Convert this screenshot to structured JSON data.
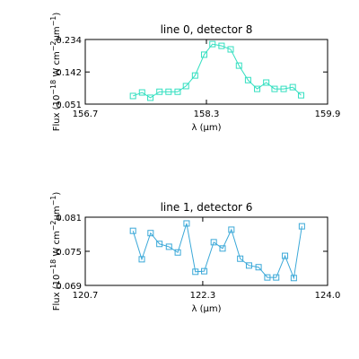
{
  "chart_data": [
    {
      "type": "line",
      "title": "line 0, detector 8",
      "xlabel": "λ (μm)",
      "ylabel": [
        "Flux (10",
        "−18",
        " W cm",
        "−2",
        "μm",
        "−1",
        ")"
      ],
      "xlim": [
        156.7,
        159.9
      ],
      "xticks": [
        156.7,
        158.3,
        159.9
      ],
      "ylim": [
        0.051,
        0.234
      ],
      "yticks": [
        0.051,
        0.142,
        0.234
      ],
      "series": [
        {
          "color": "#33dfc0",
          "x": [
            157.33,
            157.45,
            157.56,
            157.68,
            157.8,
            157.92,
            158.03,
            158.15,
            158.27,
            158.38,
            158.5,
            158.62,
            158.73,
            158.85,
            158.97,
            159.09,
            159.2,
            159.32,
            159.44,
            159.55
          ],
          "values": [
            0.074,
            0.084,
            0.069,
            0.086,
            0.086,
            0.086,
            0.102,
            0.132,
            0.191,
            0.221,
            0.216,
            0.206,
            0.16,
            0.119,
            0.094,
            0.112,
            0.094,
            0.094,
            0.099,
            0.076
          ]
        }
      ]
    },
    {
      "type": "line",
      "title": "line 1, detector 6",
      "xlabel": "λ (μm)",
      "ylabel": [
        "Flux (10",
        "−18",
        " W cm",
        "−2",
        "μm",
        "−1",
        ")"
      ],
      "xlim": [
        120.7,
        124.0
      ],
      "xticks": [
        120.7,
        122.3,
        {
          "value": 124.0,
          "label": "124.0"
        }
      ],
      "ylim": [
        0.069,
        0.081
      ],
      "yticks": [
        0.069,
        0.075,
        0.081
      ],
      "series": [
        {
          "color": "#3aa8d8",
          "x": [
            121.35,
            121.47,
            121.59,
            121.71,
            121.84,
            121.96,
            122.08,
            122.2,
            122.32,
            122.45,
            122.57,
            122.69,
            122.81,
            122.93,
            123.06,
            123.18,
            123.3,
            123.42,
            123.54,
            123.65
          ],
          "values": [
            0.0786,
            0.0736,
            0.0782,
            0.0763,
            0.0758,
            0.0748,
            0.0799,
            0.0714,
            0.0715,
            0.0766,
            0.0755,
            0.0788,
            0.0737,
            0.0725,
            0.0722,
            0.0704,
            0.0704,
            0.0742,
            0.0703,
            0.0794
          ]
        }
      ]
    }
  ]
}
